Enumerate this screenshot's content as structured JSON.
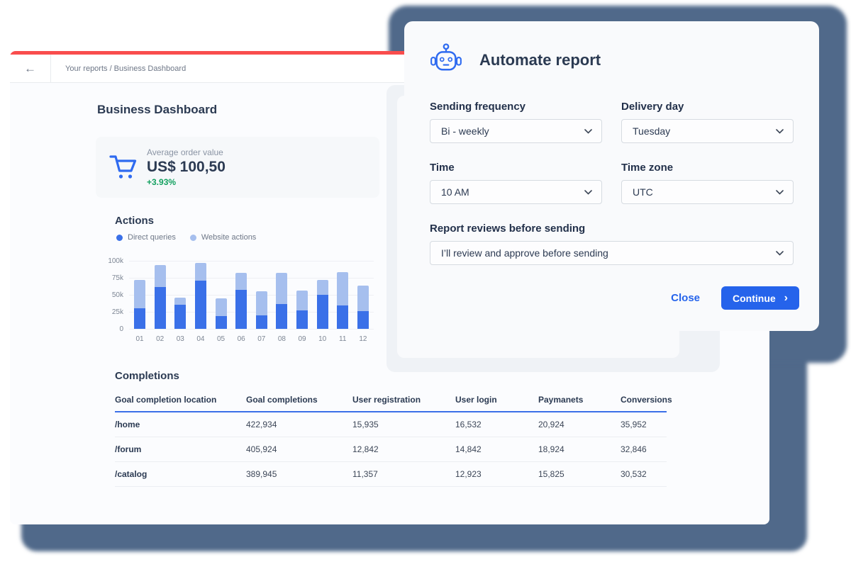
{
  "dashboard": {
    "back_icon": "←",
    "breadcrumb": "Your reports / Business Dashboard",
    "title": "Business Dashboard",
    "accent_red": "#f94d4d",
    "kpi": {
      "icon": "shopping-cart-icon",
      "icon_color": "#2f6bf0",
      "label": "Average order value",
      "value": "US$ 100,50",
      "delta": "+3.93%",
      "delta_color": "#12a05f"
    },
    "actions": {
      "title": "Actions"
    },
    "completions": {
      "title": "Completions",
      "columns": [
        "Goal completion location",
        "Goal completions",
        "User registration",
        "User login",
        "Paymanets",
        "Conversions"
      ],
      "rows": [
        [
          "/home",
          "422,934",
          "15,935",
          "16,532",
          "20,924",
          "35,952"
        ],
        [
          "/forum",
          "405,924",
          "12,842",
          "14,842",
          "18,924",
          "32,846"
        ],
        [
          "/catalog",
          "389,945",
          "11,357",
          "12,923",
          "15,825",
          "30,532"
        ]
      ]
    }
  },
  "chart_data": {
    "type": "bar",
    "stacked": true,
    "title": "Actions",
    "categories": [
      "01",
      "02",
      "03",
      "04",
      "05",
      "06",
      "07",
      "08",
      "09",
      "10",
      "11",
      "12"
    ],
    "series": [
      {
        "name": "Direct queries",
        "color": "#3a70e8",
        "values": [
          30,
          61,
          35,
          71,
          19,
          57,
          20,
          36,
          27,
          50,
          34,
          26
        ]
      },
      {
        "name": "Website actions",
        "color": "#a6bfee",
        "values": [
          42,
          33,
          11,
          26,
          26,
          25,
          35,
          46,
          29,
          22,
          49,
          38
        ]
      }
    ],
    "unit": "thousands",
    "ylim": [
      0,
      100
    ],
    "yticks": [
      "100k",
      "75k",
      "50k",
      "25k",
      "0"
    ],
    "grid": true,
    "legend_position": "top",
    "xlabel": "",
    "ylabel": ""
  },
  "modal": {
    "icon": "robot-icon",
    "icon_color": "#2f6bf0",
    "title": "Automate report",
    "fields": [
      {
        "label": "Sending frequency",
        "value": "Bi - weekly"
      },
      {
        "label": "Delivery day",
        "value": "Tuesday"
      },
      {
        "label": "Time",
        "value": "10 AM"
      },
      {
        "label": "Time zone",
        "value": "UTC"
      },
      {
        "label": "Report reviews before sending",
        "value": "I’ll review and approve before sending"
      }
    ],
    "close_label": "Close",
    "continue_label": "Continue",
    "continue_chevron": "›",
    "button_color": "#2563eb"
  }
}
